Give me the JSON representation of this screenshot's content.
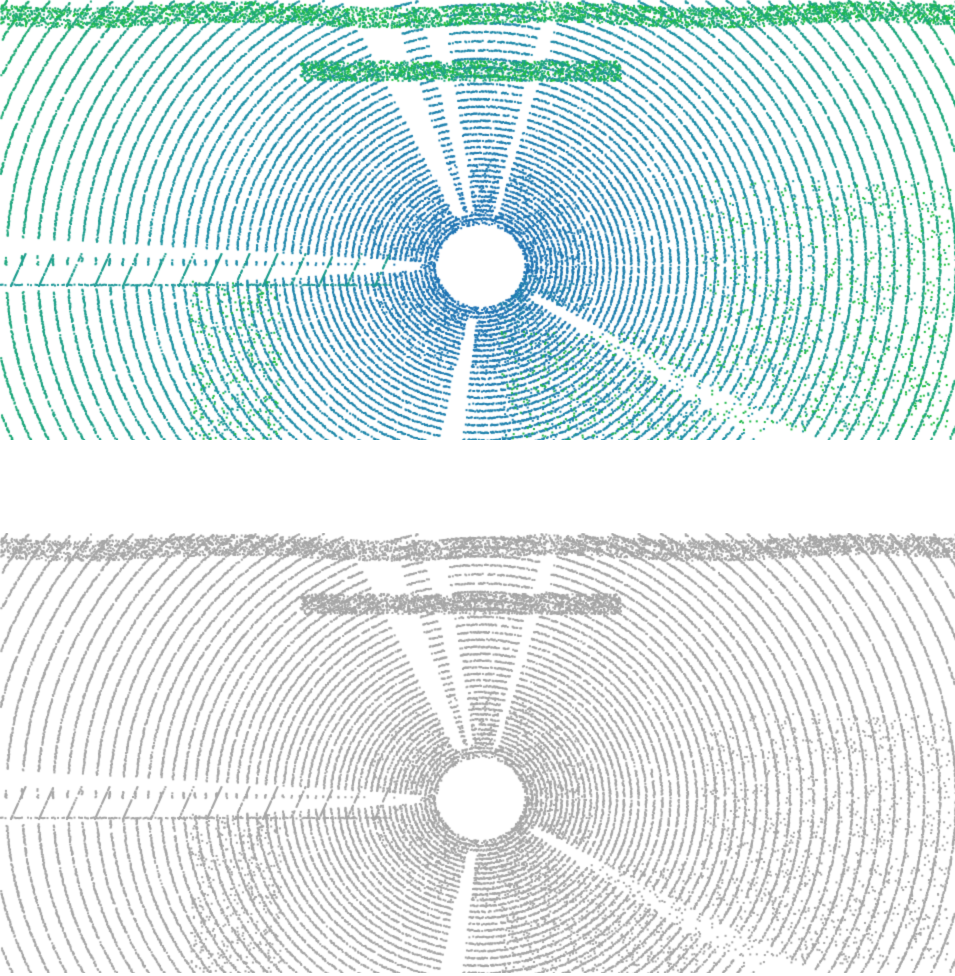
{
  "scene": {
    "description_hidden": false,
    "panels": [
      {
        "id": "colored",
        "style": "height-colored",
        "colors": {
          "near": "#1f74b4",
          "mid": "#1f93a6",
          "far": "#1db06a",
          "vegetation": "#21c72d"
        }
      },
      {
        "id": "gray",
        "style": "monochrome",
        "colors": {
          "point": "#a6a6a6"
        }
      }
    ]
  }
}
